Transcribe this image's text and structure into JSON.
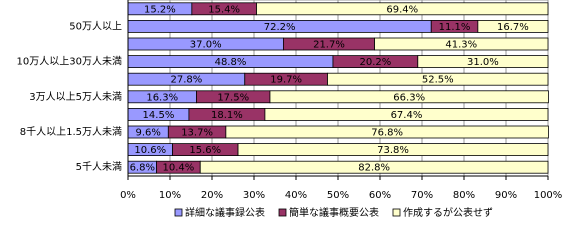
{
  "chart_data": {
    "type": "stacked-bar",
    "orientation": "horizontal",
    "categories": [
      null,
      "50万人以上",
      null,
      "10万人以上30万人未満",
      null,
      "3万人以上5万人未満",
      null,
      "8千人以上1.5万人未満",
      null,
      "5千人未満"
    ],
    "series": [
      {
        "name": "詳細な議事録公表",
        "color": "#9999ff",
        "values": [
          15.2,
          72.2,
          37.0,
          48.8,
          27.8,
          16.3,
          14.5,
          9.6,
          10.6,
          6.8
        ],
        "value_labels": [
          "15.2%",
          "72.2%",
          "37.0%",
          "48.8%",
          "27.8%",
          "16.3%",
          "14.5%",
          "9.6%",
          "10.6%",
          "6.8%"
        ]
      },
      {
        "name": "簡単な議事概要公表",
        "color": "#993366",
        "values": [
          15.4,
          11.1,
          21.7,
          20.2,
          19.7,
          17.5,
          18.1,
          13.7,
          15.6,
          10.4
        ],
        "value_labels": [
          "15.4%",
          "11.1%",
          "21.7%",
          "20.2%",
          "19.7%",
          "17.5%",
          "18.1%",
          "13.7%",
          "15.6%",
          "10.4%"
        ]
      },
      {
        "name": "作成するが公表せず",
        "color": "#ffffcc",
        "values": [
          69.4,
          16.7,
          41.3,
          31.0,
          52.5,
          66.3,
          67.4,
          76.8,
          73.8,
          82.8
        ],
        "value_labels": [
          "69.4%",
          "16.7%",
          "41.3%",
          "31.0%",
          "52.5%",
          "66.3%",
          "67.4%",
          "76.8%",
          "73.8%",
          "82.8%"
        ]
      }
    ],
    "xlim": [
      0,
      100
    ],
    "xticks": [
      {
        "value": 0,
        "label": "0%"
      },
      {
        "value": 10,
        "label": "10%"
      },
      {
        "value": 20,
        "label": "20%"
      },
      {
        "value": 30,
        "label": "30%"
      },
      {
        "value": 40,
        "label": "40%"
      },
      {
        "value": 50,
        "label": "50%"
      },
      {
        "value": 60,
        "label": "60%"
      },
      {
        "value": 70,
        "label": "70%"
      },
      {
        "value": 80,
        "label": "80%"
      },
      {
        "value": 90,
        "label": "90%"
      },
      {
        "value": 100,
        "label": "100%"
      }
    ],
    "grid": true,
    "legend": "bottom"
  }
}
